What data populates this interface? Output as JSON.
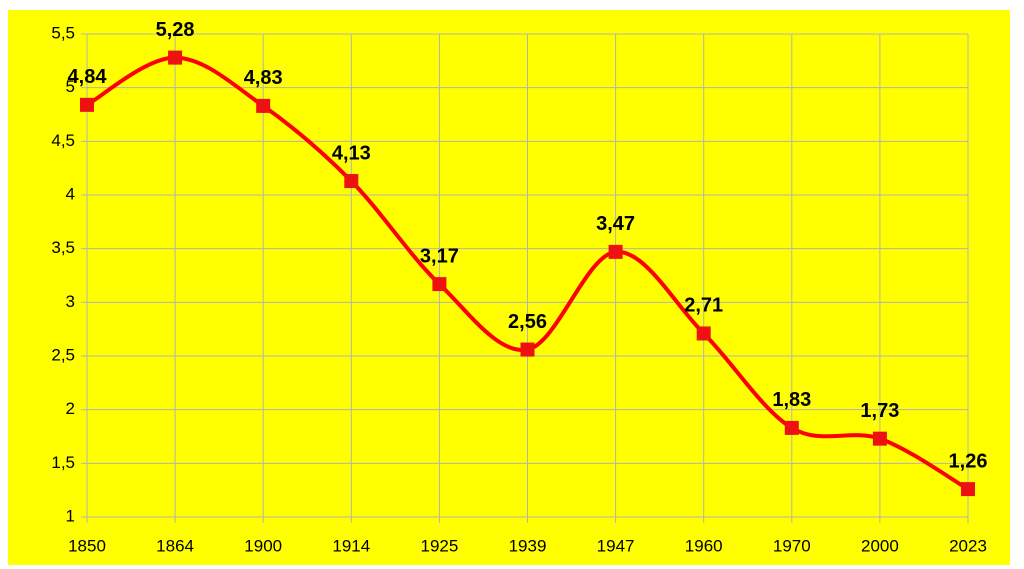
{
  "chart_data": {
    "type": "line",
    "categories": [
      "1850",
      "1864",
      "1900",
      "1914",
      "1925",
      "1939",
      "1947",
      "1960",
      "1970",
      "2000",
      "2023"
    ],
    "values": [
      4.84,
      5.28,
      4.83,
      4.13,
      3.17,
      2.56,
      3.47,
      2.71,
      1.83,
      1.73,
      1.26
    ],
    "value_labels": [
      "4,84",
      "5,28",
      "4,83",
      "4,13",
      "3,17",
      "2,56",
      "3,47",
      "2,71",
      "1,83",
      "1,73",
      "1,26"
    ],
    "color": "#ff0000",
    "marker_color": "#ee1111",
    "background": "#ffff00",
    "ylim": [
      1,
      5.5
    ],
    "yticks": [
      1,
      {
        "value": 1.5,
        "label": "1,5"
      },
      2,
      {
        "value": 2.5,
        "label": "2,5"
      },
      3,
      {
        "value": 3.5,
        "label": "3,5"
      },
      4,
      {
        "value": 4.5,
        "label": "4,5"
      },
      5,
      {
        "value": 5.5,
        "label": "5,5"
      }
    ],
    "grid": true,
    "smooth": true
  }
}
